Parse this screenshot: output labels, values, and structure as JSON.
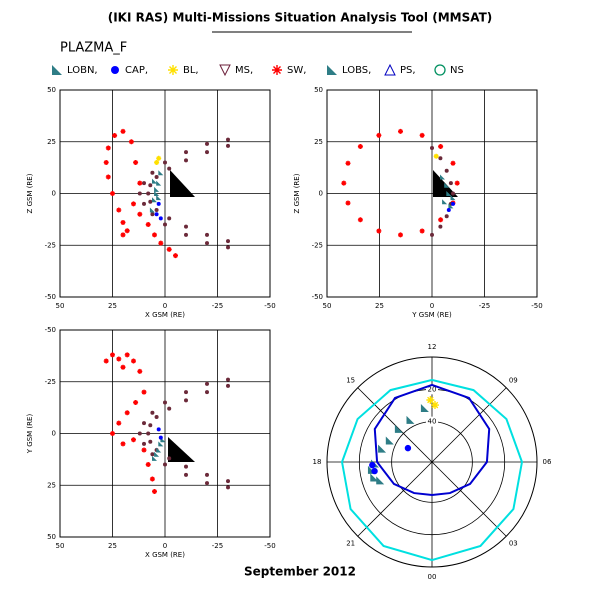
{
  "title": "(IKI RAS) Multi-Missions Situation Analysis Tool (MMSAT)",
  "subtitle": "PLAZMA_F",
  "footer": "September 2012",
  "legend": [
    {
      "name": "LOBN,",
      "color": "#2e7d86",
      "marker": "tri"
    },
    {
      "name": "CAP,",
      "color": "#0000ff",
      "marker": "dot"
    },
    {
      "name": "BL,",
      "color": "#ffe000",
      "marker": "star"
    },
    {
      "name": "MS,",
      "color": "#6b1f3a",
      "marker": "tridown"
    },
    {
      "name": "SW,",
      "color": "#ff0000",
      "marker": "asterisk"
    },
    {
      "name": "LOBS,",
      "color": "#2e7d86",
      "marker": "tri"
    },
    {
      "name": "PS,",
      "color": "#0000c0",
      "marker": "triup"
    },
    {
      "name": "NS",
      "color": "#009060",
      "marker": "ring"
    }
  ],
  "chart_data": [
    {
      "type": "scatter",
      "xlabel": "X GSM (RE)",
      "ylabel": "Z GSM (RE)",
      "xlim": [
        50,
        -50
      ],
      "ylim": [
        -50,
        50
      ],
      "xticks": [
        50,
        25,
        0,
        -25,
        -50
      ],
      "yticks": [
        50,
        25,
        0,
        -25,
        -50
      ],
      "grid": true,
      "series": [
        {
          "color": "#6b2a3a",
          "marker": "dot",
          "x": [
            -30,
            -20,
            -10,
            0,
            6,
            10,
            12,
            10,
            6,
            0,
            -10,
            -20,
            -30
          ],
          "y": [
            26,
            24,
            20,
            15,
            10,
            5,
            0,
            -5,
            -10,
            -15,
            -20,
            -24,
            -26
          ]
        },
        {
          "color": "#6b2a3a",
          "marker": "dot",
          "x": [
            -30,
            -20,
            -10,
            -2,
            4,
            7,
            8,
            7,
            4,
            -2,
            -10,
            -20,
            -30
          ],
          "y": [
            23,
            20,
            16,
            12,
            8,
            4,
            0,
            -4,
            -8,
            -12,
            -16,
            -20,
            -23
          ]
        },
        {
          "color": "#ff0000",
          "marker": "asterisk",
          "x": [
            20,
            24,
            27,
            28,
            27,
            25,
            22,
            20,
            18,
            15,
            12,
            8,
            5,
            2,
            -2,
            -5,
            16,
            14,
            12,
            20
          ],
          "y": [
            30,
            28,
            22,
            15,
            8,
            0,
            -8,
            -14,
            -18,
            -5,
            -10,
            -15,
            -20,
            -24,
            -27,
            -30,
            25,
            15,
            5,
            -20
          ]
        },
        {
          "color": "#2e7d86",
          "marker": "tri",
          "x": [
            2,
            3,
            4,
            5,
            6,
            4,
            3,
            5
          ],
          "y": [
            10,
            5,
            0,
            -3,
            -8,
            2,
            -2,
            6
          ]
        },
        {
          "color": "#0000ff",
          "marker": "dot",
          "x": [
            3,
            4,
            2
          ],
          "y": [
            -5,
            -10,
            -12
          ]
        },
        {
          "color": "#ffe000",
          "marker": "star",
          "x": [
            3,
            4
          ],
          "y": [
            17,
            15
          ]
        }
      ]
    },
    {
      "type": "scatter",
      "xlabel": "Y GSM (RE)",
      "ylabel": "Z GSM (RE)",
      "xlim": [
        50,
        -50
      ],
      "ylim": [
        -50,
        50
      ],
      "xticks": [
        50,
        25,
        0,
        -25,
        -50
      ],
      "yticks": [
        50,
        25,
        0,
        -25,
        -50
      ],
      "grid": true,
      "series": [
        {
          "color": "#ff0000",
          "marker": "asterisk",
          "x": [
            42,
            40,
            34.1,
            25.3,
            15,
            4.7,
            -4.1,
            -10,
            -12,
            -10,
            -4.1,
            4.7,
            15,
            25.3,
            34.1,
            40
          ],
          "y": [
            5,
            14.6,
            22.7,
            28.1,
            30,
            28.1,
            22.7,
            14.6,
            5,
            -4.6,
            -12.7,
            -18.1,
            -20,
            -18.1,
            -12.7,
            -4.6
          ]
        },
        {
          "color": "#6b2a3a",
          "marker": "dot",
          "x": [
            0,
            -4,
            -7,
            -9,
            -10,
            -9,
            -7,
            -4,
            0
          ],
          "y": [
            22,
            17,
            11,
            5,
            0,
            -5,
            -11,
            -16,
            -20
          ]
        },
        {
          "color": "#2e7d86",
          "marker": "tri",
          "x": [
            -5,
            -7,
            -8,
            -6,
            -9,
            -10
          ],
          "y": [
            8,
            4,
            0,
            -4,
            -6,
            -2
          ]
        },
        {
          "color": "#ffe000",
          "marker": "star",
          "x": [
            -2
          ],
          "y": [
            18
          ]
        },
        {
          "color": "#0000ff",
          "marker": "dot",
          "x": [
            -8,
            -10
          ],
          "y": [
            -8,
            -5
          ]
        }
      ]
    },
    {
      "type": "scatter",
      "xlabel": "X GSM (RE)",
      "ylabel": "Y GSM (RE)",
      "xlim": [
        50,
        -50
      ],
      "ylim": [
        50,
        -50
      ],
      "xticks": [
        50,
        25,
        0,
        -25,
        -50
      ],
      "yticks": [
        -50,
        -25,
        0,
        25,
        50
      ],
      "grid": true,
      "series": [
        {
          "color": "#6b2a3a",
          "marker": "dot",
          "x": [
            -30,
            -20,
            -10,
            0,
            6,
            10,
            12,
            10,
            6,
            0,
            -10,
            -20,
            -30
          ],
          "y": [
            -26,
            -24,
            -20,
            -15,
            -10,
            -5,
            0,
            5,
            10,
            15,
            20,
            24,
            26
          ]
        },
        {
          "color": "#6b2a3a",
          "marker": "dot",
          "x": [
            -30,
            -20,
            -10,
            -2,
            4,
            7,
            8,
            7,
            4,
            -2,
            -10,
            -20,
            -30
          ],
          "y": [
            -23,
            -20,
            -16,
            -12,
            -8,
            -4,
            0,
            4,
            8,
            12,
            16,
            20,
            23
          ]
        },
        {
          "color": "#ff0000",
          "marker": "asterisk",
          "x": [
            28,
            25,
            22,
            20,
            18,
            15,
            12,
            10,
            14,
            18,
            22,
            25,
            20,
            15,
            10,
            8,
            6,
            5
          ],
          "y": [
            -35,
            -38,
            -36,
            -32,
            -38,
            -35,
            -30,
            -20,
            -15,
            -10,
            -5,
            0,
            5,
            3,
            8,
            15,
            22,
            28
          ]
        },
        {
          "color": "#2e7d86",
          "marker": "tri",
          "x": [
            2,
            3,
            4,
            1,
            5
          ],
          "y": [
            5,
            8,
            10,
            3,
            12
          ]
        },
        {
          "color": "#0000ff",
          "marker": "dot",
          "x": [
            3,
            2
          ],
          "y": [
            -2,
            2
          ]
        }
      ]
    },
    {
      "type": "polar",
      "rlim": [
        65,
        0
      ],
      "rticks": [
        20,
        40
      ],
      "thetaticks": [
        {
          "value": 0,
          "label": "00"
        },
        {
          "value": 3,
          "label": "03"
        },
        {
          "value": 6,
          "label": "06"
        },
        {
          "value": 9,
          "label": "09"
        },
        12,
        15,
        18,
        21
      ],
      "series": [
        {
          "color": "#00e0e0",
          "mode": "line",
          "theta": [
            0,
            2,
            4,
            6,
            8,
            10,
            12,
            14,
            16,
            18,
            20,
            22
          ],
          "r": [
            4.3,
            5,
            6.8,
            9.3,
            11.8,
            13.6,
            14.2,
            13.6,
            11.8,
            9.3,
            6.8,
            5
          ]
        },
        {
          "color": "#0000d0",
          "mode": "line",
          "theta": [
            0,
            2,
            4,
            6,
            8,
            10,
            12,
            14,
            16,
            18,
            20,
            22
          ],
          "r": [
            44.6,
            42.8,
            37.8,
            31,
            24.1,
            19.2,
            17.3,
            19.2,
            24.1,
            31,
            37.8,
            42.8
          ]
        },
        {
          "color": "#2e7d86",
          "mode": "points",
          "marker": "tri",
          "theta": [
            18.1,
            16.2,
            13.8,
            19.3,
            18.5,
            12.5,
            17,
            15,
            19
          ],
          "r": [
            29.7,
            35.7,
            35.7,
            31,
            27.5,
            31.3,
            33,
            36,
            28
          ]
        },
        {
          "color": "#ffe000",
          "mode": "points",
          "marker": "star",
          "theta": [
            12.1,
            11.8
          ],
          "r": [
            26.6,
            29.7
          ]
        },
        {
          "color": "#0000ff",
          "mode": "points",
          "marker": "dot",
          "theta": [
            18.6,
            18.2,
            16
          ],
          "r": [
            29,
            28,
            47.8
          ]
        }
      ]
    }
  ]
}
